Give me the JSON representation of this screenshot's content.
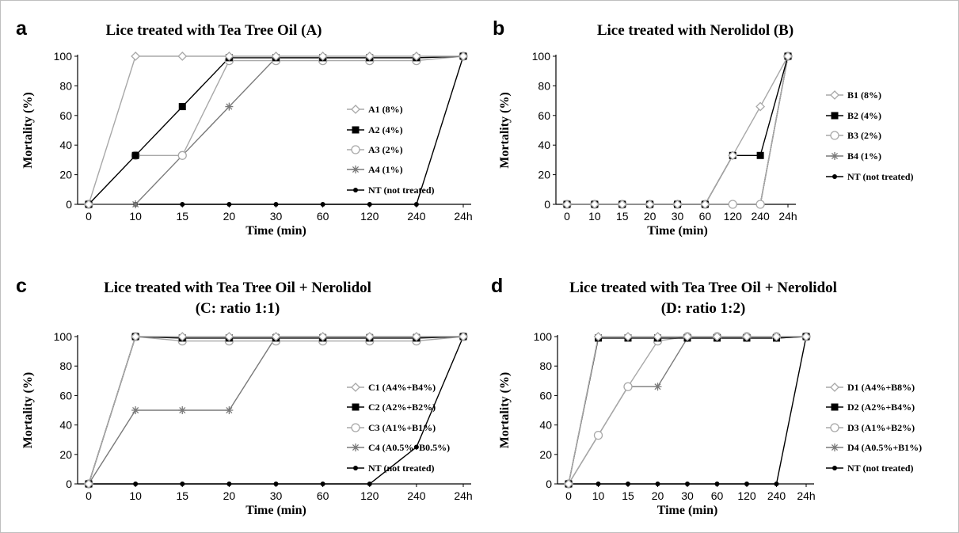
{
  "chart_data": [
    {
      "type": "line",
      "panel": "a",
      "title": [
        "Lice treated with Tea Tree Oil (A)"
      ],
      "xlabel": "Time (min)",
      "ylabel": "Mortality (%)",
      "categories": [
        "0",
        "10",
        "15",
        "20",
        "30",
        "60",
        "120",
        "240",
        "24h"
      ],
      "ylim": [
        0,
        100
      ],
      "yticks": [
        0,
        20,
        40,
        60,
        80,
        100
      ],
      "legend_position": "right",
      "series": [
        {
          "name": "A1 (8%)",
          "marker": "diamond",
          "color": "#a8a8a8",
          "values": [
            0,
            100,
            100,
            100,
            100,
            100,
            100,
            100,
            100
          ]
        },
        {
          "name": "A2 (4%)",
          "marker": "square",
          "color": "#000000",
          "values": [
            0,
            33,
            66,
            99,
            99,
            99,
            99,
            99,
            100
          ]
        },
        {
          "name": "A3 (2%)",
          "marker": "circle",
          "color": "#a8a8a8",
          "values": [
            0,
            33,
            33,
            97,
            97,
            97,
            97,
            97,
            100
          ]
        },
        {
          "name": "A4 (1%)",
          "marker": "asterisk",
          "color": "#7a7a7a",
          "values": [
            0,
            0,
            33,
            66,
            99,
            99,
            99,
            99,
            100
          ]
        },
        {
          "name": "NT (not treated)",
          "marker": "dot",
          "color": "#000000",
          "values": [
            0,
            0,
            0,
            0,
            0,
            0,
            0,
            0,
            100
          ]
        }
      ]
    },
    {
      "type": "line",
      "panel": "b",
      "title": [
        "Lice treated with Nerolidol (B)"
      ],
      "xlabel": "Time (min)",
      "ylabel": "Mortality (%)",
      "categories": [
        "0",
        "10",
        "15",
        "20",
        "30",
        "60",
        "120",
        "240",
        "24h"
      ],
      "ylim": [
        0,
        100
      ],
      "yticks": [
        0,
        20,
        40,
        60,
        80,
        100
      ],
      "legend_position": "right",
      "series": [
        {
          "name": "B1 (8%)",
          "marker": "diamond",
          "color": "#a8a8a8",
          "values": [
            0,
            0,
            0,
            0,
            0,
            0,
            33,
            66,
            100
          ]
        },
        {
          "name": "B2 (4%)",
          "marker": "square",
          "color": "#000000",
          "values": [
            0,
            0,
            0,
            0,
            0,
            0,
            33,
            33,
            100
          ]
        },
        {
          "name": "B3 (2%)",
          "marker": "circle",
          "color": "#a8a8a8",
          "values": [
            0,
            0,
            0,
            0,
            0,
            0,
            0,
            0,
            100
          ]
        },
        {
          "name": "B4 (1%)",
          "marker": "asterisk",
          "color": "#7a7a7a",
          "values": [
            0,
            0,
            0,
            0,
            0,
            0,
            0,
            0,
            100
          ]
        },
        {
          "name": "NT (not treated)",
          "marker": "dot",
          "color": "#000000",
          "values": [
            0,
            0,
            0,
            0,
            0,
            0,
            0,
            0,
            100
          ]
        }
      ]
    },
    {
      "type": "line",
      "panel": "c",
      "title": [
        "Lice treated with Tea Tree Oil + Nerolidol",
        "(C: ratio 1:1)"
      ],
      "xlabel": "Time (min)",
      "ylabel": "Mortality (%)",
      "categories": [
        "0",
        "10",
        "15",
        "20",
        "30",
        "60",
        "120",
        "240",
        "24h"
      ],
      "ylim": [
        0,
        100
      ],
      "yticks": [
        0,
        20,
        40,
        60,
        80,
        100
      ],
      "legend_position": "right",
      "series": [
        {
          "name": "C1 (A4%+B4%)",
          "marker": "diamond",
          "color": "#a8a8a8",
          "values": [
            0,
            100,
            100,
            100,
            100,
            100,
            100,
            100,
            100
          ]
        },
        {
          "name": "C2 (A2%+B2%)",
          "marker": "square",
          "color": "#000000",
          "values": [
            0,
            100,
            99,
            99,
            99,
            99,
            99,
            99,
            100
          ]
        },
        {
          "name": "C3 (A1%+B1%)",
          "marker": "circle",
          "color": "#a8a8a8",
          "values": [
            0,
            100,
            97,
            97,
            97,
            97,
            97,
            97,
            100
          ]
        },
        {
          "name": "C4 (A0.5%+B0.5%)",
          "marker": "asterisk",
          "color": "#7a7a7a",
          "values": [
            0,
            50,
            50,
            50,
            100,
            100,
            100,
            100,
            100
          ]
        },
        {
          "name": "NT (not treated)",
          "marker": "dot",
          "color": "#000000",
          "values": [
            0,
            0,
            0,
            0,
            0,
            0,
            0,
            25,
            100
          ]
        }
      ]
    },
    {
      "type": "line",
      "panel": "d",
      "title": [
        "Lice treated with Tea Tree Oil + Nerolidol",
        "(D: ratio 1:2)"
      ],
      "xlabel": "Time (min)",
      "ylabel": "Mortality (%)",
      "categories": [
        "0",
        "10",
        "15",
        "20",
        "30",
        "60",
        "120",
        "240",
        "24h"
      ],
      "ylim": [
        0,
        100
      ],
      "yticks": [
        0,
        20,
        40,
        60,
        80,
        100
      ],
      "legend_position": "right",
      "series": [
        {
          "name": "D1 (A4%+B8%)",
          "marker": "diamond",
          "color": "#a8a8a8",
          "values": [
            0,
            100,
            100,
            100,
            100,
            100,
            100,
            100,
            100
          ]
        },
        {
          "name": "D2 (A2%+B4%)",
          "marker": "square",
          "color": "#000000",
          "values": [
            0,
            99,
            99,
            99,
            99,
            99,
            99,
            99,
            100
          ]
        },
        {
          "name": "D3 (A1%+B2%)",
          "marker": "circle",
          "color": "#a8a8a8",
          "values": [
            0,
            33,
            66,
            97,
            100,
            100,
            100,
            100,
            100
          ]
        },
        {
          "name": "D4 (A0.5%+B1%)",
          "marker": "asterisk",
          "color": "#7a7a7a",
          "values": [
            0,
            33,
            66,
            66,
            99,
            99,
            99,
            99,
            100
          ]
        },
        {
          "name": "NT (not treated)",
          "marker": "dot",
          "color": "#000000",
          "values": [
            0,
            0,
            0,
            0,
            0,
            0,
            0,
            0,
            100
          ]
        }
      ]
    }
  ]
}
